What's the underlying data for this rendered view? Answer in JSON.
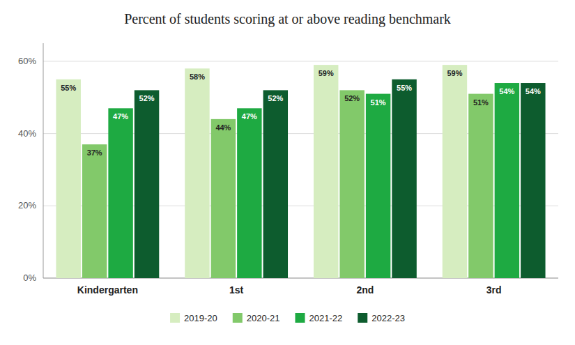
{
  "chart_data": {
    "type": "bar",
    "title": "Percent of students scoring at or above reading benchmark",
    "categories": [
      "Kindergarten",
      "1st",
      "2nd",
      "3rd"
    ],
    "series": [
      {
        "name": "2019-20",
        "color": "#d6edc0",
        "values": [
          55,
          58,
          59,
          59
        ],
        "value_labels": [
          "55%",
          "58%",
          "59%",
          "59%"
        ]
      },
      {
        "name": "2020-21",
        "color": "#82c96a",
        "values": [
          37,
          44,
          52,
          51
        ],
        "value_labels": [
          "37%",
          "44%",
          "52%",
          "51%"
        ]
      },
      {
        "name": "2021-22",
        "color": "#1eaa42",
        "values": [
          47,
          47,
          51,
          54
        ],
        "value_labels": [
          "47%",
          "47%",
          "51%",
          "54%"
        ]
      },
      {
        "name": "2022-23",
        "color": "#0d5c2e",
        "values": [
          52,
          52,
          55,
          54
        ],
        "value_labels": [
          "52%",
          "52%",
          "55%",
          "54%"
        ]
      }
    ],
    "ylim": [
      0,
      65
    ],
    "yticks": [
      {
        "value": 0,
        "label": "0%"
      },
      {
        "value": 20,
        "label": "20%"
      },
      {
        "value": 40,
        "label": "40%"
      },
      {
        "value": 60,
        "label": "60%"
      }
    ],
    "grid": true,
    "legend": "bottom",
    "data_labels": true
  }
}
